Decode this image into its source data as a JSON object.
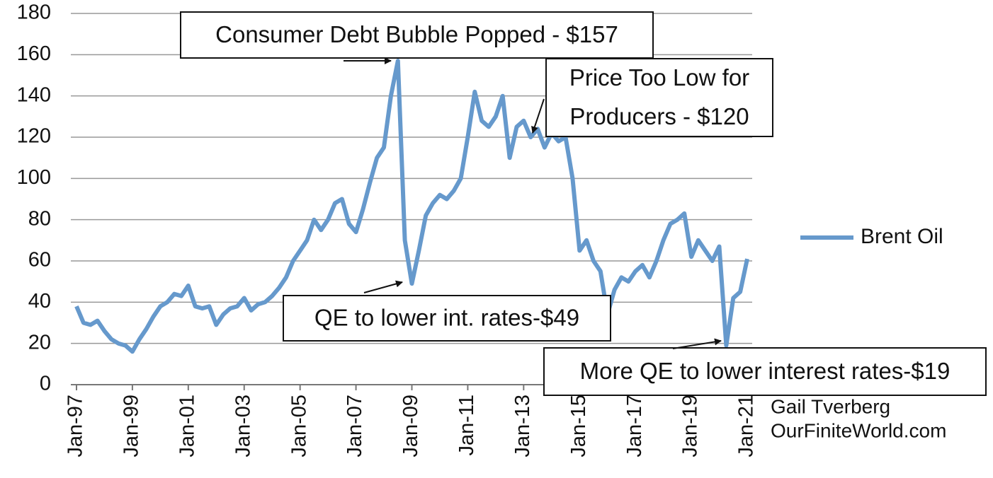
{
  "chart_data": {
    "type": "line",
    "categories": [
      "Jan-97",
      null,
      null,
      null,
      null,
      null,
      null,
      null,
      "Jan-99",
      null,
      null,
      null,
      null,
      null,
      null,
      null,
      "Jan-01",
      null,
      null,
      null,
      null,
      null,
      null,
      null,
      "Jan-03",
      null,
      null,
      null,
      null,
      null,
      null,
      null,
      "Jan-05",
      null,
      null,
      null,
      null,
      null,
      null,
      null,
      "Jan-07",
      null,
      null,
      null,
      null,
      null,
      null,
      null,
      "Jan-09",
      null,
      null,
      null,
      null,
      null,
      null,
      null,
      "Jan-11",
      null,
      null,
      null,
      null,
      null,
      null,
      null,
      "Jan-13",
      null,
      null,
      null,
      null,
      null,
      null,
      null,
      "Jan-15",
      null,
      null,
      null,
      null,
      null,
      null,
      null,
      "Jan-17",
      null,
      null,
      null,
      null,
      null,
      null,
      null,
      "Jan-19",
      null,
      null,
      null,
      null,
      null,
      null,
      null,
      "Jan-21"
    ],
    "series": [
      {
        "name": "Brent Oil",
        "color": "#6699cc",
        "values": [
          38,
          30,
          29,
          31,
          26,
          22,
          20,
          19,
          16,
          22,
          27,
          33,
          38,
          40,
          44,
          43,
          48,
          38,
          37,
          38,
          29,
          34,
          37,
          38,
          42,
          36,
          39,
          40,
          43,
          47,
          52,
          60,
          65,
          70,
          80,
          75,
          80,
          88,
          90,
          78,
          74,
          85,
          98,
          110,
          115,
          140,
          157,
          70,
          49,
          65,
          82,
          88,
          92,
          90,
          94,
          100,
          120,
          142,
          128,
          125,
          130,
          140,
          110,
          125,
          128,
          120,
          124,
          115,
          122,
          118,
          120,
          100,
          65,
          70,
          60,
          55,
          34,
          46,
          52,
          50,
          55,
          58,
          52,
          60,
          70,
          78,
          80,
          83,
          62,
          70,
          65,
          60,
          67,
          19,
          42,
          45,
          61
        ]
      }
    ],
    "ylim": [
      0,
      180
    ],
    "yticks": [
      0,
      20,
      40,
      60,
      80,
      100,
      120,
      140,
      160,
      180
    ],
    "grid": true,
    "legend": "right",
    "annotations": [
      {
        "text": [
          "Consumer Debt Bubble Popped - $157"
        ]
      },
      {
        "text": [
          "Price Too Low for",
          "Producers - $120"
        ]
      },
      {
        "text": [
          "QE to lower int. rates-$49"
        ]
      },
      {
        "text": [
          "More QE to lower interest rates-$19"
        ]
      }
    ],
    "credit": [
      "Gail Tverberg",
      "OurFiniteWorld.com"
    ]
  }
}
